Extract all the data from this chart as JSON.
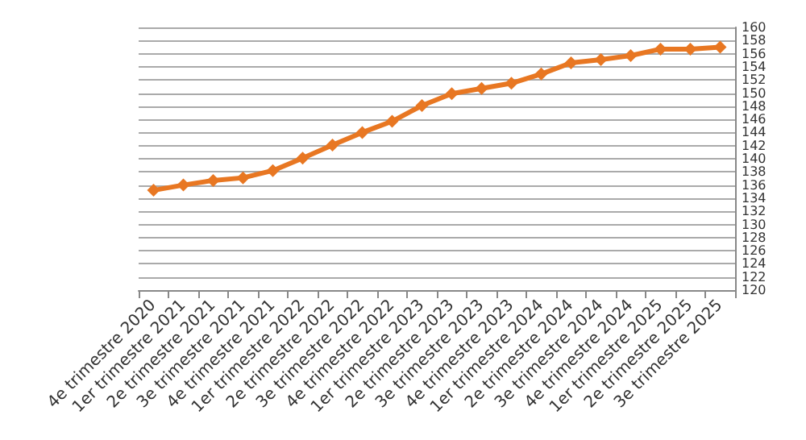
{
  "chart_data": {
    "type": "line",
    "categories": [
      "4e trimestre 2020",
      "1er trimestre 2021",
      "2e trimestre 2021",
      "3e trimestre 2021",
      "4e trimestre 2021",
      "1er trimestre 2022",
      "2e trimestre 2022",
      "3e trimestre 2022",
      "4e trimestre 2022",
      "1er trimestre 2023",
      "2e trimestre 2023",
      "3e trimestre 2023",
      "4e trimestre 2023",
      "1er trimestre 2024",
      "2e trimestre 2024",
      "3e trimestre 2024",
      "4e trimestre 2024",
      "1er trimestre 2025",
      "2e trimestre 2025",
      "3e trimestre 2025"
    ],
    "series": [
      {
        "color": "#e87722",
        "values": [
          135.2,
          136.0,
          136.7,
          137.1,
          138.2,
          140.1,
          142.1,
          144.0,
          145.7,
          148.1,
          149.9,
          150.7,
          151.5,
          152.9,
          154.6,
          155.1,
          155.7,
          156.7,
          156.7,
          157.0
        ]
      }
    ],
    "ylim": [
      120,
      160
    ],
    "yticks": [
      120,
      122,
      124,
      126,
      128,
      130,
      132,
      134,
      136,
      138,
      140,
      142,
      144,
      146,
      148,
      150,
      152,
      154,
      156,
      158,
      160
    ],
    "grid": "y",
    "marker": "diamond",
    "line_style": "solid"
  }
}
